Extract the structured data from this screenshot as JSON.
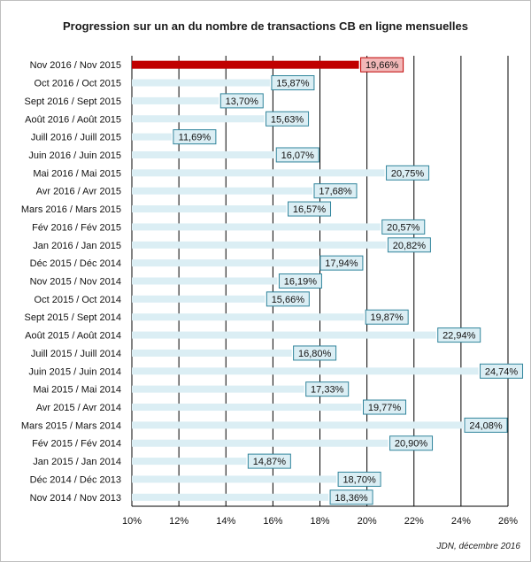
{
  "chart_data": {
    "type": "bar",
    "orientation": "horizontal",
    "title": "Progression sur un an du nombre de transactions CB en ligne mensuelles",
    "source": "JDN, décembre 2016",
    "categories": [
      "Nov 2016 / Nov 2015",
      "Oct 2016 / Oct 2015",
      "Sept 2016 / Sept 2015",
      "Août 2016 / Août 2015",
      "Juill 2016 / Juill 2015",
      "Juin 2016 / Juin 2015",
      "Mai 2016 / Mai 2015",
      "Avr 2016 / Avr 2015",
      "Mars 2016 / Mars 2015",
      "Fév 2016 / Fév 2015",
      "Jan 2016 / Jan 2015",
      "Déc 2015 / Déc 2014",
      "Nov 2015 / Nov 2014",
      "Oct 2015 / Oct 2014",
      "Sept 2015 / Sept 2014",
      "Août 2015 / Août 2014",
      "Juill 2015 / Juill 2014",
      "Juin 2015 / Juin 2014",
      "Mai 2015 / Mai 2014",
      "Avr 2015 / Avr 2014",
      "Mars 2015 / Mars 2014",
      "Fév 2015 / Fév 2014",
      "Jan 2015 / Jan 2014",
      "Déc 2014 / Déc 2013",
      "Nov 2014 / Nov 2013"
    ],
    "values": [
      19.66,
      15.87,
      13.7,
      15.63,
      11.69,
      16.07,
      20.75,
      17.68,
      16.57,
      20.57,
      20.82,
      17.94,
      16.19,
      15.66,
      19.87,
      22.94,
      16.8,
      24.74,
      17.33,
      19.77,
      24.08,
      20.9,
      14.87,
      18.7,
      18.36
    ],
    "data_labels": [
      "19,66%",
      "15,87%",
      "13,70%",
      "15,63%",
      "11,69%",
      "16,07%",
      "20,75%",
      "17,68%",
      "16,57%",
      "20,57%",
      "20,82%",
      "17,94%",
      "16,19%",
      "15,66%",
      "19,87%",
      "22,94%",
      "16,80%",
      "24,74%",
      "17,33%",
      "19,77%",
      "24,08%",
      "20,90%",
      "14,87%",
      "18,70%",
      "18,36%"
    ],
    "xlim": [
      10,
      26
    ],
    "xticks": [
      "10%",
      "12%",
      "14%",
      "16%",
      "18%",
      "20%",
      "22%",
      "24%",
      "26%"
    ],
    "unit": "%",
    "highlight_index": 0,
    "grid": "vertical",
    "legend": "none",
    "colors": {
      "bar": "#dbeef4",
      "bar_highlight": "#c00000",
      "label_bg": "#dbeef4",
      "label_border": "#31859c",
      "label_bg_highlight": "#f2b8b8",
      "label_border_highlight": "#c00000",
      "grid": "#000000"
    }
  }
}
